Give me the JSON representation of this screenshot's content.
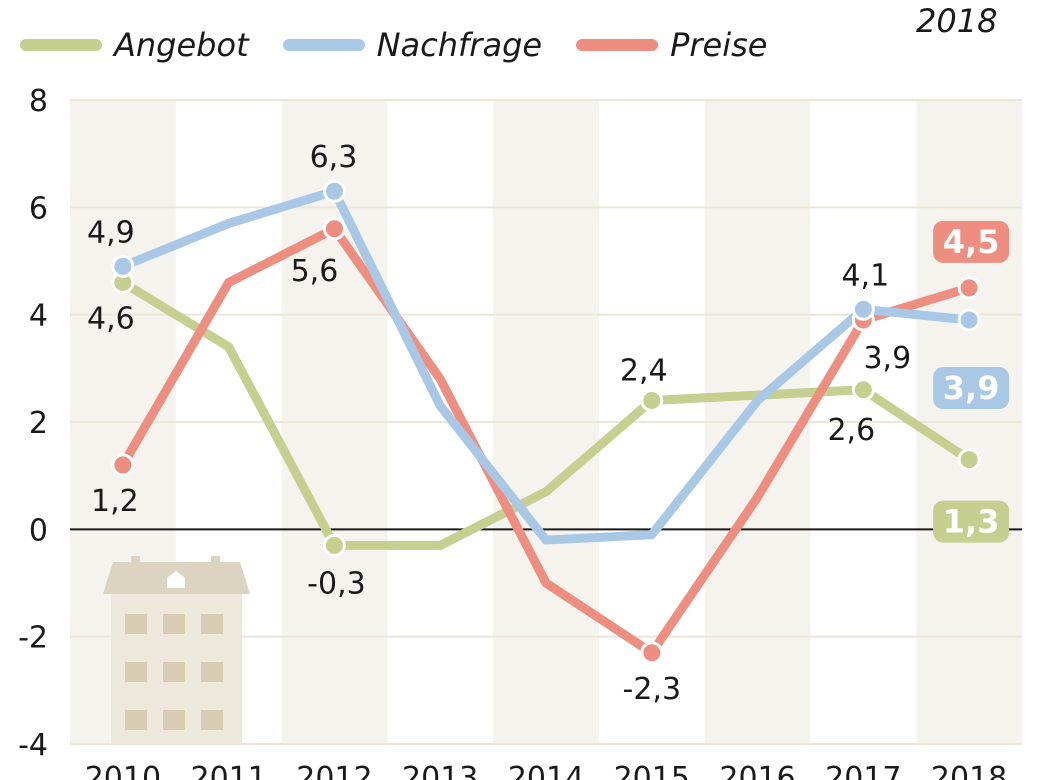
{
  "top_right_year": "2018",
  "chart_data": {
    "type": "line",
    "title": "",
    "xlabel": "",
    "ylabel": "",
    "categories": [
      "2010",
      "2011",
      "2012",
      "2013",
      "2014",
      "2015",
      "2016",
      "2017",
      "2018"
    ],
    "ylim": [
      -4,
      8
    ],
    "yticks": [
      "8",
      "6",
      "4",
      "2",
      "0",
      "-2",
      "-4"
    ],
    "legend_position": "top-left",
    "grid": true,
    "series": [
      {
        "name": "Angebot",
        "color": "#c5cf8f",
        "values": [
          4.6,
          3.4,
          -0.3,
          -0.3,
          0.7,
          2.4,
          2.5,
          2.6,
          1.3
        ],
        "labels": {
          "0": "4,6",
          "2": "-0,3",
          "5": "2,4",
          "7": "2,6"
        },
        "end_badge": "1,3"
      },
      {
        "name": "Nachfrage",
        "color": "#a9c8e6",
        "values": [
          4.9,
          5.7,
          6.3,
          2.3,
          -0.2,
          -0.1,
          2.4,
          4.1,
          3.9
        ],
        "labels": {
          "0": "4,9",
          "2": "6,3",
          "7": "4,1"
        },
        "end_badge": "3,9"
      },
      {
        "name": "Preise",
        "color": "#ee8e80",
        "values": [
          1.2,
          4.6,
          5.6,
          2.8,
          -1.0,
          -2.3,
          0.6,
          3.9,
          4.5
        ],
        "labels": {
          "0": "1,2",
          "2": "5,6",
          "5": "-2,3",
          "7": "3,9"
        },
        "end_badge": "4,5"
      }
    ]
  }
}
